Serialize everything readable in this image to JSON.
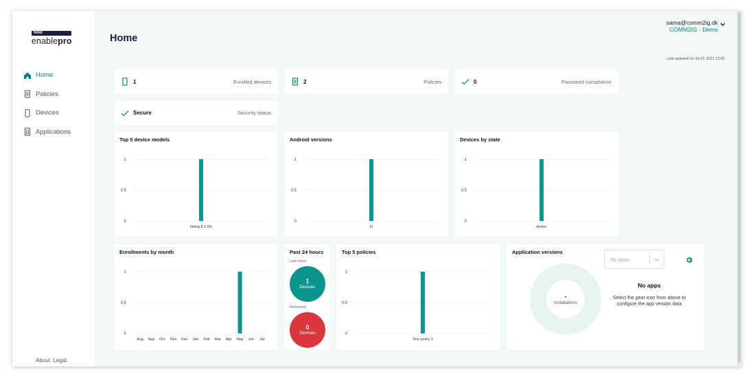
{
  "brand": {
    "tag": "hmd",
    "name_light": "enable",
    "name_bold": "pro"
  },
  "nav": [
    {
      "label": "Home",
      "icon": "home-icon",
      "active": true
    },
    {
      "label": "Policies",
      "icon": "policy-icon",
      "active": false
    },
    {
      "label": "Devices",
      "icon": "device-icon",
      "active": false
    },
    {
      "label": "Applications",
      "icon": "applications-icon",
      "active": false
    }
  ],
  "footer": {
    "links": "About. Legal."
  },
  "header": {
    "title": "Home",
    "user_email": "sama@comm2ig.dk",
    "user_org": "COMM2IG - Demo",
    "last_updated": "Last updated on Jul 01 2021 13:41"
  },
  "stats": [
    {
      "value": "1",
      "label": "Enrolled devices",
      "icon": "device-icon"
    },
    {
      "value": "2",
      "label": "Policies",
      "icon": "policy-icon"
    },
    {
      "value": "0",
      "label": "Password compliance",
      "icon": "check-icon"
    },
    {
      "value": "Secure",
      "label": "Security status",
      "icon": "check-icon"
    }
  ],
  "colors": {
    "accent": "#00857e",
    "bar": "#0a968f",
    "removed": "#d9363e",
    "grid": "#e8ecec"
  },
  "chart_data": [
    {
      "type": "bar",
      "title": "Top 5 device models",
      "categories": [
        "Nokia 8.3 5G"
      ],
      "values": [
        1
      ],
      "ylim": [
        0,
        1
      ],
      "yticks": [
        "0",
        "0.5",
        "1"
      ]
    },
    {
      "type": "bar",
      "title": "Android versions",
      "categories": [
        "11"
      ],
      "values": [
        1
      ],
      "ylim": [
        0,
        1
      ],
      "yticks": [
        "0",
        "0.5",
        "1"
      ]
    },
    {
      "type": "bar",
      "title": "Devices by state",
      "categories": [
        "Active"
      ],
      "values": [
        1
      ],
      "ylim": [
        0,
        1
      ],
      "yticks": [
        "0",
        "0.5",
        "1"
      ]
    },
    {
      "type": "bar",
      "title": "Enrollments by month",
      "categories": [
        "Aug",
        "Sep",
        "Oct",
        "Nov",
        "Dec",
        "Jan",
        "Feb",
        "Mar",
        "Apr",
        "May",
        "Jun",
        "Jul"
      ],
      "values": [
        0,
        0,
        0,
        0,
        0,
        0,
        0,
        0,
        0,
        1,
        0,
        0
      ],
      "ylim": [
        0,
        1
      ],
      "yticks": [
        "0",
        "0.5",
        "1"
      ]
    },
    {
      "type": "bar",
      "title": "Top 5 policies",
      "categories": [
        "Test policy 1"
      ],
      "values": [
        1
      ],
      "ylim": [
        0,
        1
      ],
      "yticks": [
        "0",
        "0.5",
        "1"
      ]
    }
  ],
  "past24": {
    "title": "Past 24 hours",
    "last_seen_label": "Last seen",
    "last_seen_value": "1",
    "last_seen_unit": "Devices",
    "removed_label": "Removed",
    "removed_value": "0",
    "removed_unit": "Devices"
  },
  "app_versions": {
    "title": "Application versions",
    "select_placeholder": "No apps",
    "donut_value": "-",
    "donut_label": "Installations",
    "empty_title": "No apps",
    "empty_text": "Select the gear icon from above to configure the app version data"
  }
}
